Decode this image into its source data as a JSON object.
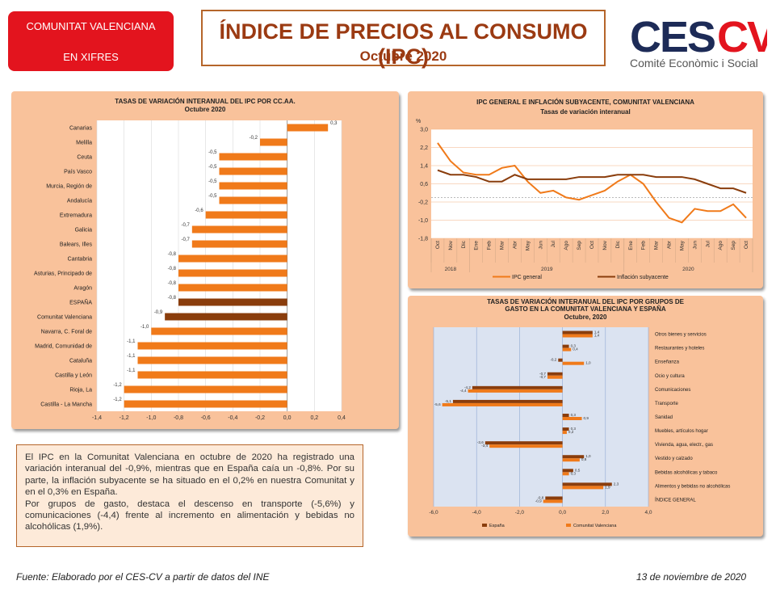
{
  "header": {
    "region_line1": "COMUNITAT VALENCIANA",
    "region_line2": "EN XIFRES",
    "title": "ÍNDICE DE PRECIOS AL CONSUMO (IPC)",
    "subtitle": "Octubre 2020",
    "logo_text": "CESCV",
    "logo_sub": "Comité Econòmic i Social"
  },
  "colors": {
    "accent_orange": "#f07a1a",
    "dark_brown": "#8a3d0c",
    "panel_bg": "#f9c29b",
    "red_badge": "#e3141e"
  },
  "chart_data": [
    {
      "type": "bar",
      "title": "TASAS DE VARIACIÓN INTERANUAL DEL IPC POR CC.AA.",
      "subtitle": "Octubre 2020",
      "orientation": "horizontal",
      "categories": [
        "Canarias",
        "Melilla",
        "Ceuta",
        "País Vasco",
        "Murcia, Región de",
        "Andalucía",
        "Extremadura",
        "Galicia",
        "Balears, Illes",
        "Cantabria",
        "Asturias, Principado de",
        "Aragón",
        "ESPAÑA",
        "Comunitat Valenciana",
        "Navarra, C. Foral de",
        "Madrid, Comunidad de",
        "Cataluña",
        "Castilla y León",
        "Rioja, La",
        "Castilla - La Mancha"
      ],
      "values": [
        0.3,
        -0.2,
        -0.5,
        -0.5,
        -0.5,
        -0.5,
        -0.6,
        -0.7,
        -0.7,
        -0.8,
        -0.8,
        -0.8,
        -0.8,
        -0.9,
        -1.0,
        -1.1,
        -1.1,
        -1.1,
        -1.2,
        -1.2
      ],
      "value_labels": [
        "0,3",
        "-0,2",
        "-0,5",
        "-0,5",
        "-0,5",
        "-0,5",
        "-0,6",
        "-0,7",
        "-0,7",
        "-0,8",
        "-0,8",
        "-0,8",
        "-0,8",
        "-0,9",
        "-1,0",
        "-1,1",
        "-1,1",
        "-1,1",
        "-1,2",
        "-1,2"
      ],
      "highlight": {
        "ESPAÑA": "#8a3d0c",
        "Comunitat Valenciana": "#8a3d0c"
      },
      "xlim": [
        -1.4,
        0.4
      ],
      "xticks": [
        "-1,4",
        "-1,2",
        "-1,0",
        "-0,8",
        "-0,6",
        "-0,4",
        "-0,2",
        "0,0",
        "0,2",
        "0,4"
      ]
    },
    {
      "type": "line",
      "title": "IPC GENERAL E INFLACIÓN SUBYACENTE, COMUNITAT VALENCIANA",
      "subtitle": "Tasas de variación interanual",
      "ylabel": "%",
      "ylim": [
        -1.8,
        3.0
      ],
      "yticks": [
        "3,0",
        "2,2",
        "1,4",
        "0,6",
        "-0,2",
        "-1,0",
        "-1,8"
      ],
      "x": [
        "Oct",
        "Nov",
        "Dic",
        "Ene",
        "Feb",
        "Mar",
        "Abr",
        "May",
        "Jun",
        "Jul",
        "Ago",
        "Sep",
        "Oct",
        "Nov",
        "Dic",
        "Ene",
        "Feb",
        "Mar",
        "Abr",
        "May",
        "Jun",
        "Jul",
        "Ago",
        "Sep",
        "Oct"
      ],
      "year_groups": [
        {
          "label": "2018",
          "count": 3
        },
        {
          "label": "2019",
          "count": 12
        },
        {
          "label": "2020",
          "count": 10
        }
      ],
      "series": [
        {
          "name": "IPC general",
          "color": "#f07a1a",
          "values": [
            2.4,
            1.6,
            1.1,
            1.0,
            1.0,
            1.3,
            1.4,
            0.7,
            0.2,
            0.3,
            0.0,
            -0.1,
            0.1,
            0.3,
            0.7,
            1.0,
            0.6,
            -0.2,
            -0.9,
            -1.1,
            -0.5,
            -0.6,
            -0.6,
            -0.3,
            -0.9
          ]
        },
        {
          "name": "Inflación subyacente",
          "color": "#8a3d0c",
          "values": [
            1.2,
            1.0,
            1.0,
            0.9,
            0.7,
            0.7,
            1.0,
            0.8,
            0.8,
            0.8,
            0.8,
            0.9,
            0.9,
            0.9,
            1.0,
            1.0,
            1.0,
            0.9,
            0.9,
            0.9,
            0.8,
            0.6,
            0.4,
            0.4,
            0.2
          ]
        }
      ]
    },
    {
      "type": "bar",
      "title": "TASAS DE VARIACIÓN INTERANUAL DEL IPC POR GRUPOS DE GASTO EN LA COMUNITAT VALENCIANA Y ESPAÑA",
      "subtitle": "Octubre, 2020",
      "orientation": "horizontal",
      "categories": [
        "Otros bienes y servicios",
        "Restaurantes y hoteles",
        "Enseñanza",
        "Ocio y cultura",
        "Comunicaciones",
        "Transporte",
        "Sanidad",
        "Muebles, artículos hogar",
        "Vivienda, agua, electr., gas",
        "Vestido y calzado",
        "Bebidas alcohólicas y tabaco",
        "Alimentos y bebidas no alcohólicas",
        "ÍNDICE GENERAL"
      ],
      "xlim": [
        -6.0,
        4.0
      ],
      "xticks": [
        "-6,0",
        "-4,0",
        "-2,0",
        "0,0",
        "2,0",
        "4,0"
      ],
      "series": [
        {
          "name": "España",
          "color": "#8a3d0c",
          "values": [
            1.4,
            0.3,
            -0.2,
            -0.7,
            -4.2,
            -5.1,
            0.3,
            0.3,
            -3.6,
            1.0,
            0.5,
            2.3,
            -0.8
          ],
          "labels": [
            "1,4",
            "0,3",
            "-0,2",
            "-0,7",
            "-4,2",
            "-5,1",
            "0,3",
            "0,3",
            "-3,6",
            "1,0",
            "0,5",
            "2,3",
            "-0,8"
          ]
        },
        {
          "name": "Comunitat Valenciana",
          "color": "#f07a1a",
          "values": [
            1.4,
            0.4,
            1.0,
            -0.7,
            -4.4,
            -5.6,
            0.9,
            0.2,
            -3.4,
            0.8,
            0.3,
            1.9,
            -0.9
          ],
          "labels": [
            "1,4",
            "0,4",
            "1,0",
            "-0,7",
            "-4,4",
            "-5,6",
            "0,9",
            "0,2",
            "-3,4",
            "0,8",
            "0,3",
            "1,9",
            "-0,9"
          ]
        }
      ]
    }
  ],
  "text_box": {
    "p1": "El IPC en la Comunitat Valenciana en octubre de 2020 ha registrado una variación interanual del -0,9%, mientras que en España caía un -0,8%. Por su parte, la inflación subyacente se ha situado en el 0,2% en nuestra Comunitat y en el 0,3% en España.",
    "p2": "Por grupos de gasto, destaca el descenso en transporte (-5,6%) y comunicaciones (-4,4) frente al incremento en alimentación y bebidas no alcohólicas (1,9%)."
  },
  "footer": {
    "source": "Fuente: Elaborado por el CES-CV a partir de datos del INE",
    "date": "13 de noviembre de 2020"
  }
}
